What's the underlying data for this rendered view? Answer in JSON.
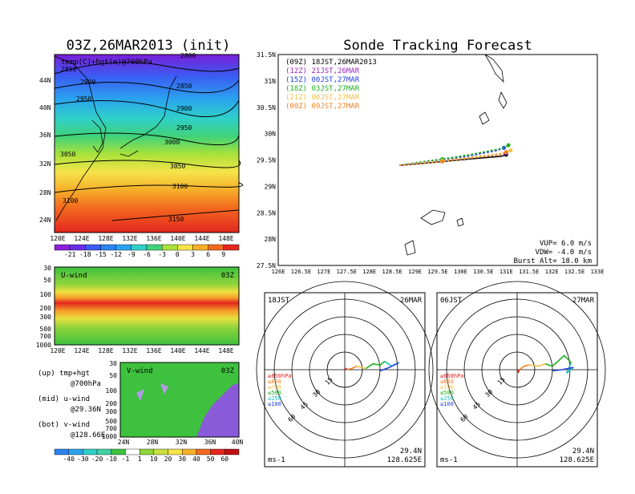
{
  "left": {
    "title": "03Z,26MAR2013 (init)",
    "map_label": "temp(C)+hgt(m)@700hPa",
    "map_lat_ticks": [
      "44N",
      "40N",
      "36N",
      "32N",
      "28N",
      "24N"
    ],
    "lon_ticks": [
      "120E",
      "124E",
      "128E",
      "132E",
      "136E",
      "140E",
      "144E",
      "148E"
    ],
    "contour_labels": [
      "2850",
      "2900",
      "2950",
      "2850",
      "2900",
      "2950",
      "3000",
      "3050",
      "3050",
      "3100",
      "3100",
      "3150",
      "2800"
    ],
    "temp_colorbar": [
      "-21",
      "-18",
      "-15",
      "-12",
      "-9",
      "-6",
      "-3",
      "0",
      "3",
      "6",
      "9"
    ],
    "uwind": {
      "label": "U-wind",
      "time": "03Z",
      "p_ticks": [
        "30",
        "50",
        "100",
        "200",
        "300",
        "500",
        "700",
        "1000"
      ]
    },
    "vwind": {
      "label": "V-wind",
      "time": "03Z",
      "p_ticks": [
        "30",
        "50",
        "100",
        "200",
        "300",
        "500",
        "700",
        "1000"
      ],
      "lat_ticks": [
        "24N",
        "28N",
        "32N",
        "36N",
        "40N"
      ]
    },
    "legend": {
      "up_1": "(up) tmp+hgt",
      "up_2": "@700hPa",
      "mid_1": "(mid) u-wind",
      "mid_2": "@29.36N",
      "bot_1": "(bot) v-wind",
      "bot_2": "@128.66E"
    },
    "wind_colorbar": [
      "-40",
      "-30",
      "-20",
      "-10",
      "-1",
      "1",
      "10",
      "20",
      "30",
      "40",
      "50",
      "60"
    ]
  },
  "track": {
    "title": "Sonde Tracking Forecast",
    "lat_ticks": [
      "31.5N",
      "31N",
      "30.5N",
      "30N",
      "29.5N",
      "29N",
      "28.5N",
      "28N",
      "27.5N"
    ],
    "lon_ticks": [
      "126E",
      "126.5E",
      "127E",
      "127.5E",
      "128E",
      "128.5E",
      "129E",
      "129.5E",
      "130E",
      "130.5E",
      "131E",
      "131.5E",
      "132E",
      "132.5E",
      "133E"
    ],
    "legend": [
      {
        "text": "(09Z) 18JST,26MAR2013",
        "color": "#000000"
      },
      {
        "text": "(12Z) 21JST,26MAR",
        "color": "#a020c0"
      },
      {
        "text": "(15Z) 00JST,27MAR",
        "color": "#2040e0"
      },
      {
        "text": "(18Z) 03JST,27MAR",
        "color": "#20b020"
      },
      {
        "text": "(21Z) 06JST,27MAR",
        "color": "#f0c040"
      },
      {
        "text": "(00Z) 09JST,27MAR",
        "color": "#f08020"
      }
    ],
    "params": {
      "vup": "VUP= 6.0 m/s",
      "vdw": "VDW= -4.0 m/s",
      "burst": "Burst Alt= 18.0 km"
    }
  },
  "chart_data": {
    "type": "line",
    "xlabel": "",
    "ylabel": "",
    "xlim": [
      126,
      133
    ],
    "ylim": [
      27.5,
      31.5
    ],
    "series": [
      {
        "color": "#000000",
        "x": [
          128.66,
          129.1,
          129.6,
          130.2,
          130.9,
          131.0
        ],
        "y": [
          29.4,
          29.43,
          29.47,
          29.52,
          29.57,
          29.6
        ]
      },
      {
        "color": "#a020c0",
        "x": [
          128.66,
          129.1,
          129.6,
          130.2,
          130.9,
          131.0
        ],
        "y": [
          29.4,
          29.44,
          29.49,
          29.55,
          29.6,
          29.63
        ]
      },
      {
        "color": "#2040e0",
        "x": [
          128.66,
          129.1,
          129.6,
          130.2,
          130.8,
          130.95
        ],
        "y": [
          29.4,
          29.45,
          29.5,
          29.58,
          29.68,
          29.73
        ]
      },
      {
        "color": "#20b020",
        "x": [
          128.66,
          129.1,
          129.6,
          130.2,
          130.9,
          131.05
        ],
        "y": [
          29.4,
          29.46,
          29.52,
          29.6,
          29.72,
          29.78
        ]
      },
      {
        "color": "#f0c040",
        "x": [
          128.66,
          129.1,
          129.6,
          130.2,
          130.9,
          131.1
        ],
        "y": [
          29.4,
          29.44,
          29.49,
          29.55,
          29.63,
          29.68
        ]
      },
      {
        "color": "#f08020",
        "x": [
          128.66,
          129.1,
          129.6,
          130.2,
          130.9,
          131.0
        ],
        "y": [
          29.4,
          29.43,
          29.47,
          29.53,
          29.6,
          29.65
        ]
      }
    ]
  },
  "polars": [
    {
      "time": "18JST",
      "date": "26MAR",
      "unit": "ms-1",
      "lat": "29.4N",
      "lon": "128.625E",
      "rings": [
        "15",
        "30",
        "45",
        "60"
      ],
      "levels": [
        {
          "text": "≥850hPa",
          "color": "#e02020"
        },
        {
          "text": "≤850",
          "color": "#f08020"
        },
        {
          "text": "≤700",
          "color": "#f0c040"
        },
        {
          "text": "≤500",
          "color": "#20b020"
        },
        {
          "text": "≤250",
          "color": "#20c0c0"
        },
        {
          "text": "≤100",
          "color": "#2040e0"
        }
      ],
      "hodograph": [
        {
          "color": "#e02020",
          "u": [
            0,
            1,
            2
          ],
          "v": [
            0,
            1,
            0
          ]
        },
        {
          "color": "#f08020",
          "u": [
            2,
            6,
            10
          ],
          "v": [
            0,
            1,
            3
          ]
        },
        {
          "color": "#f0c040",
          "u": [
            10,
            14,
            18
          ],
          "v": [
            3,
            2,
            1
          ]
        },
        {
          "color": "#20b020",
          "u": [
            18,
            24,
            30,
            34
          ],
          "v": [
            1,
            5,
            4,
            7
          ]
        },
        {
          "color": "#20c0c0",
          "u": [
            34,
            40,
            46
          ],
          "v": [
            7,
            3,
            6
          ]
        },
        {
          "color": "#2040e0",
          "u": [
            46,
            38,
            30
          ],
          "v": [
            6,
            2,
            -1
          ]
        }
      ]
    },
    {
      "time": "06JST",
      "date": "27MAR",
      "unit": "ms-1",
      "lat": "29.4N",
      "lon": "128.625E",
      "rings": [
        "15",
        "30",
        "45",
        "60"
      ],
      "levels": [
        {
          "text": "≥850hPa",
          "color": "#e02020"
        },
        {
          "text": "≤850",
          "color": "#f08020"
        },
        {
          "text": "≤700",
          "color": "#f0c040"
        },
        {
          "text": "≤500",
          "color": "#20b020"
        },
        {
          "text": "≤250",
          "color": "#20c0c0"
        },
        {
          "text": "≤100",
          "color": "#2040e0"
        }
      ],
      "hodograph": [
        {
          "color": "#e02020",
          "u": [
            0,
            1,
            2
          ],
          "v": [
            0,
            -2,
            0
          ]
        },
        {
          "color": "#f08020",
          "u": [
            2,
            6,
            10
          ],
          "v": [
            0,
            3,
            4
          ]
        },
        {
          "color": "#f0c040",
          "u": [
            10,
            18,
            24
          ],
          "v": [
            4,
            3,
            5
          ]
        },
        {
          "color": "#20b020",
          "u": [
            24,
            30,
            40,
            46
          ],
          "v": [
            5,
            3,
            12,
            6
          ]
        },
        {
          "color": "#20c0c0",
          "u": [
            46,
            42,
            48
          ],
          "v": [
            6,
            -3,
            2
          ]
        },
        {
          "color": "#2040e0",
          "u": [
            48,
            38,
            30
          ],
          "v": [
            2,
            0,
            -1
          ]
        }
      ]
    }
  ]
}
